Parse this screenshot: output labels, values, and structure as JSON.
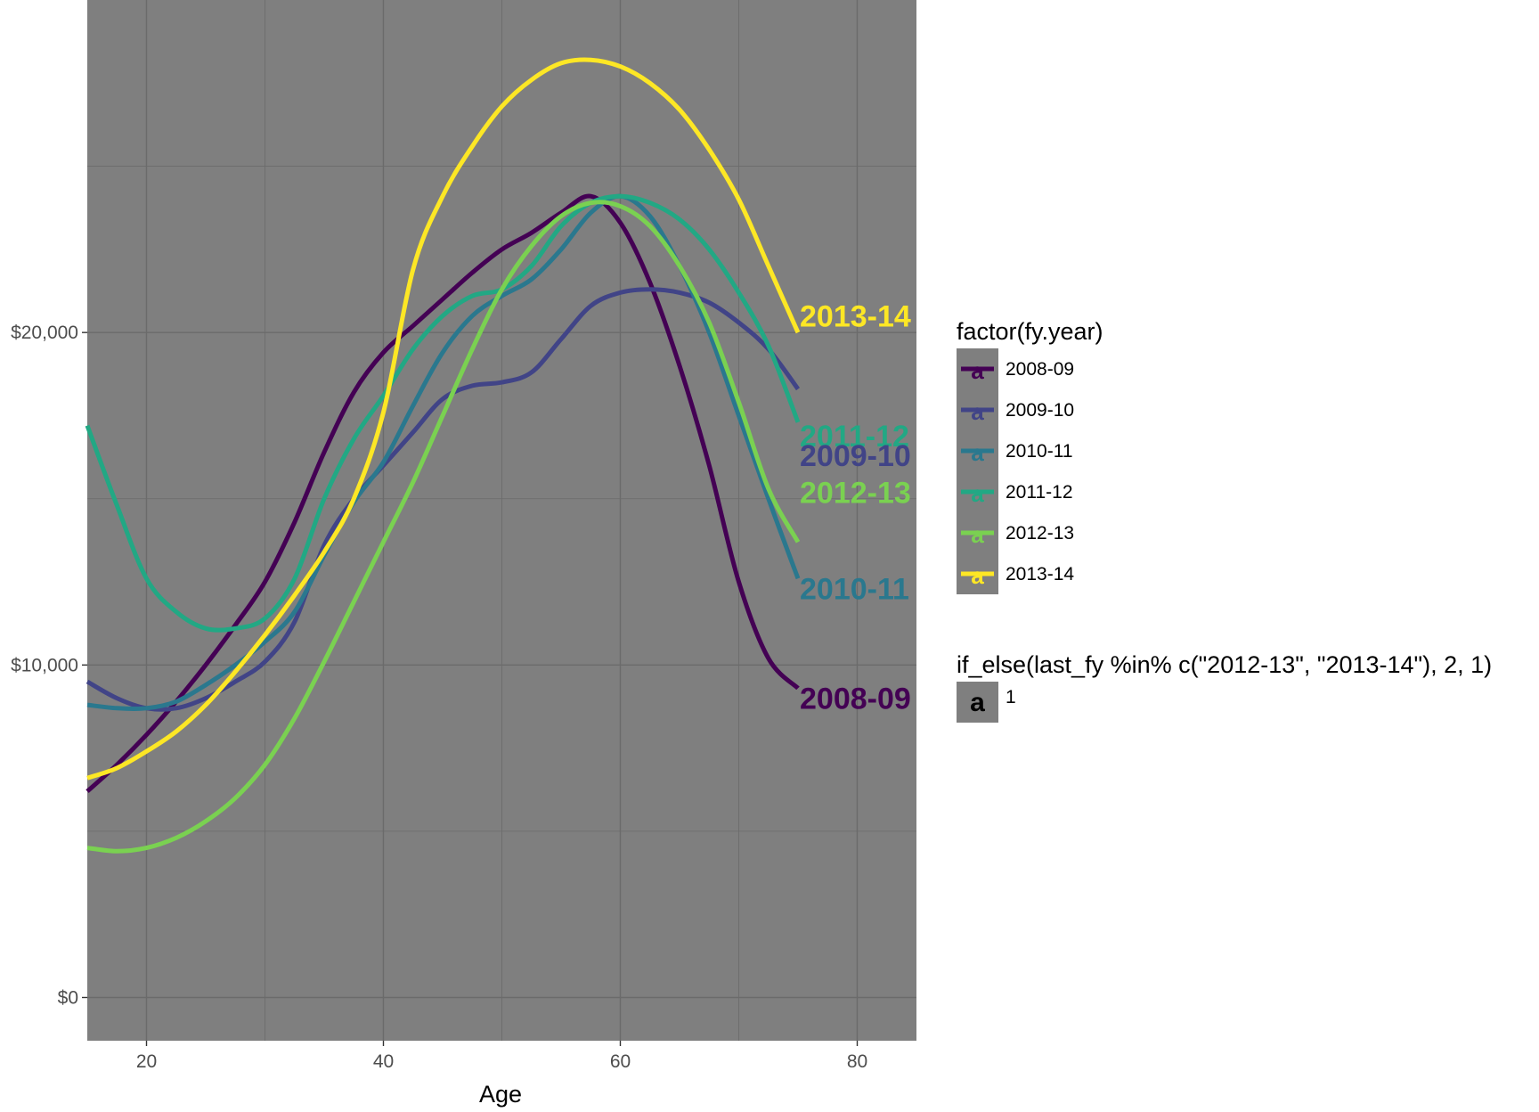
{
  "chart_data": {
    "type": "line",
    "xlabel": "Age",
    "ylabel": "",
    "xlim": [
      15,
      85
    ],
    "ylim": [
      -1300,
      30000
    ],
    "x_ticks": [
      20,
      40,
      60,
      80
    ],
    "x_tick_labels": [
      "20",
      "40",
      "60",
      "80"
    ],
    "y_ticks": [
      0,
      10000,
      20000
    ],
    "y_tick_labels": [
      "$0",
      "$10,000",
      "$20,000"
    ],
    "grid": true,
    "panel_background": "#7f7f7f",
    "grid_color": "#6b6b6b",
    "legend_placement": "right",
    "x": [
      15,
      17.5,
      20,
      22.5,
      25,
      27.5,
      30,
      32.5,
      35,
      37.5,
      40,
      42.5,
      45,
      47.5,
      50,
      52.5,
      55,
      57.5,
      60,
      62.5,
      65,
      67.5,
      70,
      72.5,
      75
    ],
    "series": [
      {
        "name": "2008-09",
        "color": "#440154",
        "values": [
          6200,
          7000,
          7900,
          8900,
          10000,
          11200,
          12500,
          14300,
          16400,
          18200,
          19400,
          20200,
          21000,
          21800,
          22500,
          23000,
          23600,
          24100,
          23300,
          21500,
          19000,
          16000,
          12500,
          10200,
          9300
        ]
      },
      {
        "name": "2009-10",
        "color": "#414487",
        "values": [
          9500,
          9000,
          8700,
          8700,
          9000,
          9500,
          10100,
          11300,
          13600,
          15000,
          16000,
          17000,
          18000,
          18400,
          18500,
          18800,
          19800,
          20800,
          21200,
          21300,
          21200,
          20900,
          20300,
          19500,
          18300
        ]
      },
      {
        "name": "2010-11",
        "color": "#2a788e",
        "values": [
          8800,
          8700,
          8700,
          8900,
          9400,
          10000,
          10700,
          11600,
          13300,
          14900,
          16100,
          17800,
          19400,
          20500,
          21100,
          21600,
          22500,
          23600,
          24100,
          23500,
          22000,
          20000,
          17500,
          15000,
          12600
        ]
      },
      {
        "name": "2011-12",
        "color": "#22a884",
        "values": [
          17200,
          14800,
          12600,
          11600,
          11100,
          11100,
          11400,
          12600,
          15000,
          16800,
          18100,
          19500,
          20500,
          21100,
          21300,
          22000,
          23200,
          23900,
          24100,
          23900,
          23400,
          22500,
          21200,
          19600,
          17300
        ]
      },
      {
        "name": "2012-13",
        "color": "#7ad151",
        "values": [
          4500,
          4400,
          4500,
          4800,
          5300,
          6000,
          7000,
          8400,
          10100,
          11900,
          13700,
          15500,
          17500,
          19500,
          21300,
          22600,
          23500,
          23900,
          23800,
          23200,
          22000,
          20300,
          17900,
          15300,
          13700
        ]
      },
      {
        "name": "2013-14",
        "color": "#fde725",
        "values": [
          6600,
          6900,
          7400,
          8000,
          8800,
          9800,
          10900,
          12100,
          13400,
          15000,
          17600,
          21900,
          24100,
          25600,
          26800,
          27600,
          28100,
          28200,
          28000,
          27500,
          26700,
          25500,
          24000,
          22000,
          20000
        ]
      }
    ],
    "end_labels": [
      {
        "text": "2013-14",
        "color": "#fde725",
        "y": 20500
      },
      {
        "text": "2011-12",
        "color": "#22a884",
        "y": 16900
      },
      {
        "text": "2009-10",
        "color": "#414487",
        "y": 16300
      },
      {
        "text": "2012-13",
        "color": "#7ad151",
        "y": 15200
      },
      {
        "text": "2010-11",
        "color": "#2a788e",
        "y": 12300
      },
      {
        "text": "2008-09",
        "color": "#440154",
        "y": 9000
      }
    ],
    "legend": {
      "title": "factor(fy.year)",
      "entries": [
        "2008-09",
        "2009-10",
        "2010-11",
        "2011-12",
        "2012-13",
        "2013-14"
      ],
      "key_glyph": "a",
      "key_background": "#7f7f7f"
    },
    "legend2": {
      "title": "if_else(last_fy %in% c(\"2012-13\", \"2013-14\"), 2, 1)",
      "entries": [
        "1"
      ],
      "key_glyph": "a"
    }
  }
}
